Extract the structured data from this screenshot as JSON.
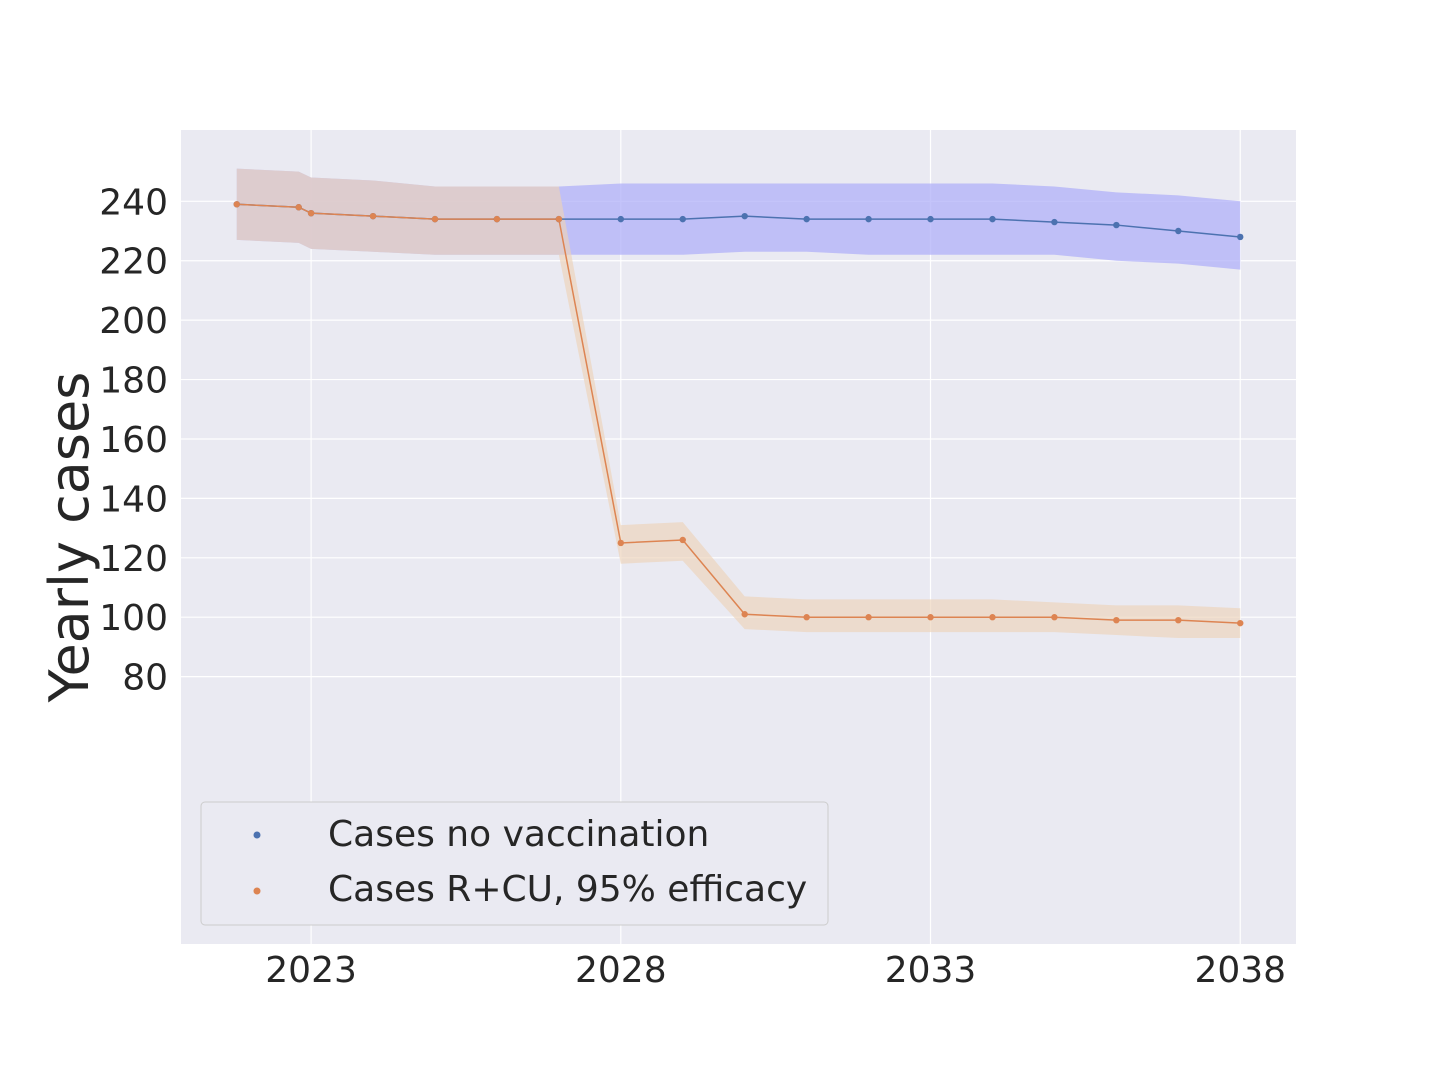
{
  "chart_data": {
    "type": "line",
    "title": "",
    "xlabel": "",
    "ylabel": "Yearly cases",
    "xlim": [
      2020.9,
      2038.9
    ],
    "ylim": [
      -10,
      264
    ],
    "xticks": [
      2023,
      2028,
      2033,
      2038
    ],
    "yticks": [
      80,
      100,
      120,
      140,
      160,
      180,
      200,
      220,
      240
    ],
    "grid": true,
    "legend_position": "lower-left",
    "colors": {
      "blue_line": "#4c72b0",
      "blue_band": "#b0b0f8",
      "orange_line": "#dd8452",
      "orange_band": "#ecd2b9",
      "overlap_band": "#cfb3c9",
      "plot_bg": "#eaeaf2",
      "grid": "#ffffff"
    },
    "series": [
      {
        "name": "Cases no vaccination",
        "color": "#4c72b0",
        "x": [
          2021.8,
          2022.8,
          2023,
          2024,
          2025,
          2026,
          2027,
          2028,
          2029,
          2030,
          2031,
          2032,
          2033,
          2034,
          2035,
          2036,
          2037,
          2038
        ],
        "values": [
          239,
          238,
          236,
          235,
          234,
          234,
          234,
          234,
          234,
          235,
          234,
          234,
          234,
          234,
          233,
          232,
          230,
          228
        ],
        "lower": [
          227,
          226,
          224,
          223,
          222,
          222,
          222,
          222,
          222,
          223,
          223,
          222,
          222,
          222,
          222,
          220,
          219,
          217
        ],
        "upper": [
          251,
          250,
          248,
          247,
          245,
          245,
          245,
          246,
          246,
          246,
          246,
          246,
          246,
          246,
          245,
          243,
          242,
          240
        ]
      },
      {
        "name": "Cases R+CU, 95% efficacy",
        "color": "#dd8452",
        "x": [
          2021.8,
          2022.8,
          2023,
          2024,
          2025,
          2026,
          2027,
          2028,
          2029,
          2030,
          2031,
          2032,
          2033,
          2034,
          2035,
          2036,
          2037,
          2038
        ],
        "values": [
          239,
          238,
          236,
          235,
          234,
          234,
          234,
          125,
          126,
          101,
          100,
          100,
          100,
          100,
          100,
          99,
          99,
          98
        ],
        "lower": [
          227,
          226,
          224,
          223,
          222,
          222,
          222,
          118,
          119,
          96,
          95,
          95,
          95,
          95,
          95,
          94,
          93,
          93
        ],
        "upper": [
          251,
          250,
          248,
          247,
          245,
          245,
          245,
          131,
          132,
          107,
          106,
          106,
          106,
          106,
          105,
          104,
          104,
          103
        ]
      }
    ]
  }
}
